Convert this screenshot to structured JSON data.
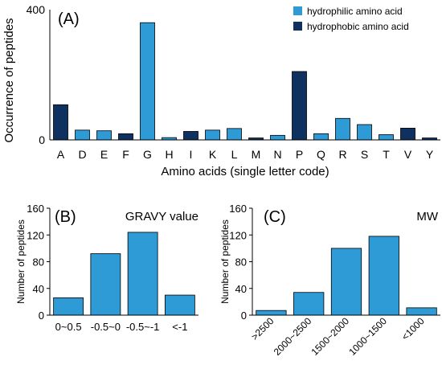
{
  "chart_data": [
    {
      "panel_label": "(A)",
      "type": "bar",
      "xlabel": "Amino acids (single letter code)",
      "ylabel": "Occurrence of peptides",
      "ylim": [
        0,
        400
      ],
      "yticks": [
        "0",
        "400"
      ],
      "categories": [
        "A",
        "D",
        "E",
        "F",
        "G",
        "H",
        "I",
        "K",
        "L",
        "M",
        "N",
        "P",
        "Q",
        "R",
        "S",
        "T",
        "V",
        "Y"
      ],
      "series": [
        {
          "name": "hydrophilic amino acid",
          "color": "#2e9ad6",
          "values": [
            null,
            30,
            28,
            null,
            360,
            7,
            null,
            30,
            35,
            null,
            14,
            null,
            19,
            66,
            47,
            16,
            null,
            null
          ]
        },
        {
          "name": "hydrophobic amino acid",
          "color": "#0f3160",
          "values": [
            108,
            null,
            null,
            19,
            null,
            null,
            26,
            null,
            null,
            6,
            null,
            210,
            null,
            null,
            null,
            null,
            36,
            6
          ]
        }
      ],
      "legend": "top-right"
    },
    {
      "panel_label": "(B)",
      "type": "bar",
      "title": "GRAVY value",
      "ylabel": "Number of peptides",
      "ylim": [
        0,
        160
      ],
      "yticks": [
        "0",
        "40",
        "80",
        "120",
        "160"
      ],
      "categories": [
        "0~0.5",
        "-0.5~0",
        "-0.5~-1",
        "<-1"
      ],
      "values": [
        26,
        92,
        124,
        30
      ],
      "color": "#2e9ad6"
    },
    {
      "panel_label": "(C)",
      "type": "bar",
      "title": "MW",
      "ylabel": "Number of peptides",
      "ylim": [
        0,
        160
      ],
      "yticks": [
        "0",
        "40",
        "80",
        "120",
        "160"
      ],
      "categories": [
        ">2500",
        "2000~2500",
        "1500~2000",
        "1000~1500",
        "<1000"
      ],
      "values": [
        7,
        34,
        100,
        118,
        11
      ],
      "color": "#2e9ad6"
    }
  ]
}
